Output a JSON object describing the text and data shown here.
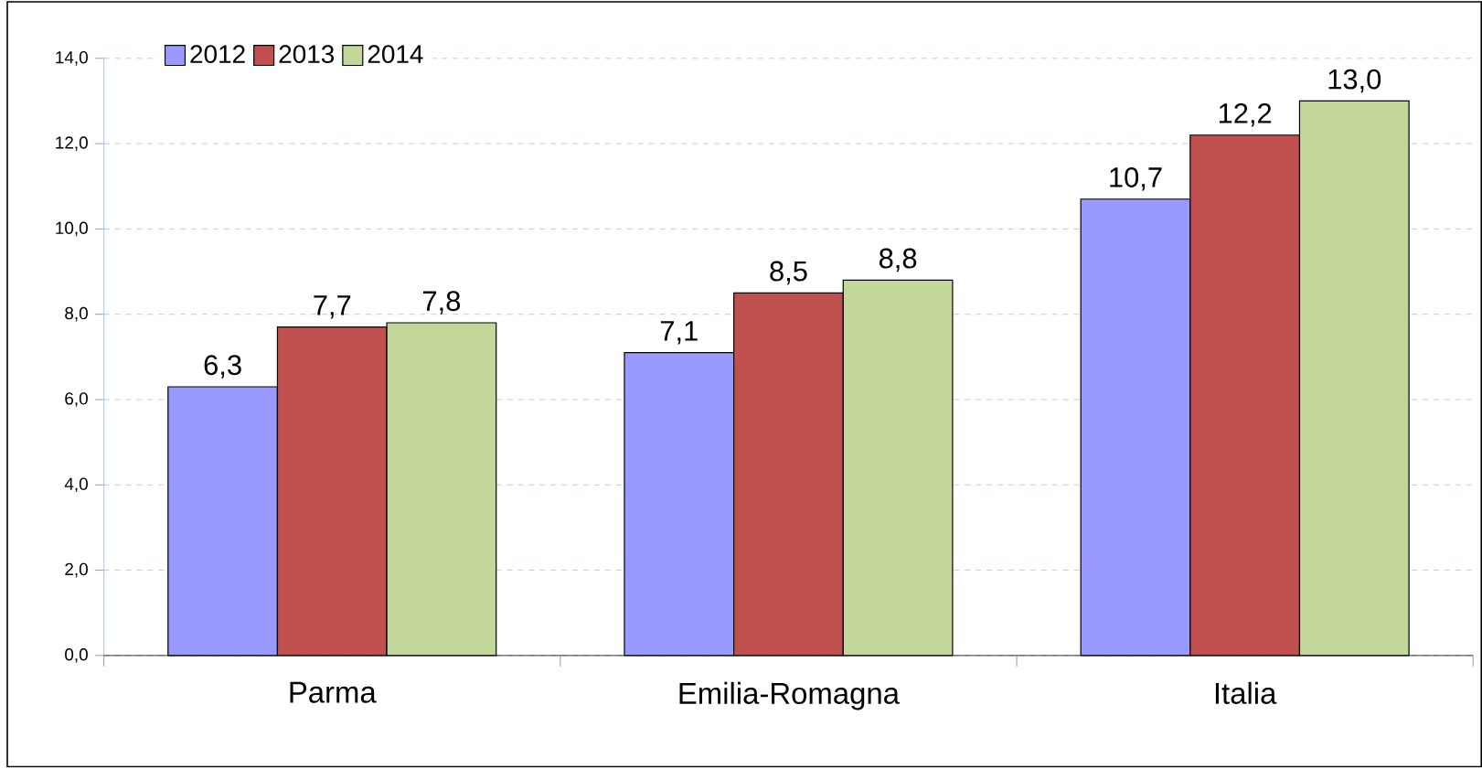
{
  "chart_data": {
    "type": "bar",
    "categories": [
      "Parma",
      "Emilia-Romagna",
      "Italia"
    ],
    "series": [
      {
        "name": "2012",
        "color": "#9999ff",
        "values": [
          6.3,
          7.1,
          10.7
        ],
        "value_labels": [
          "6,3",
          "7,1",
          "10,7"
        ]
      },
      {
        "name": "2013",
        "color": "#c0504d",
        "values": [
          7.7,
          8.5,
          12.2
        ],
        "value_labels": [
          "7,7",
          "8,5",
          "12,2"
        ]
      },
      {
        "name": "2014",
        "color": "#c4d79b",
        "values": [
          7.8,
          8.8,
          13.0
        ],
        "value_labels": [
          "7,8",
          "8,8",
          "13,0"
        ]
      }
    ],
    "ylim": [
      0,
      14
    ],
    "yticks": [
      {
        "value": 0,
        "label": "0,0"
      },
      {
        "value": 2,
        "label": "2,0"
      },
      {
        "value": 4,
        "label": "4,0"
      },
      {
        "value": 6,
        "label": "6,0"
      },
      {
        "value": 8,
        "label": "8,0"
      },
      {
        "value": 10,
        "label": "10,0"
      },
      {
        "value": 12,
        "label": "12,0"
      },
      {
        "value": 14,
        "label": "14,0"
      }
    ],
    "grid": "y",
    "legend": "top left"
  }
}
